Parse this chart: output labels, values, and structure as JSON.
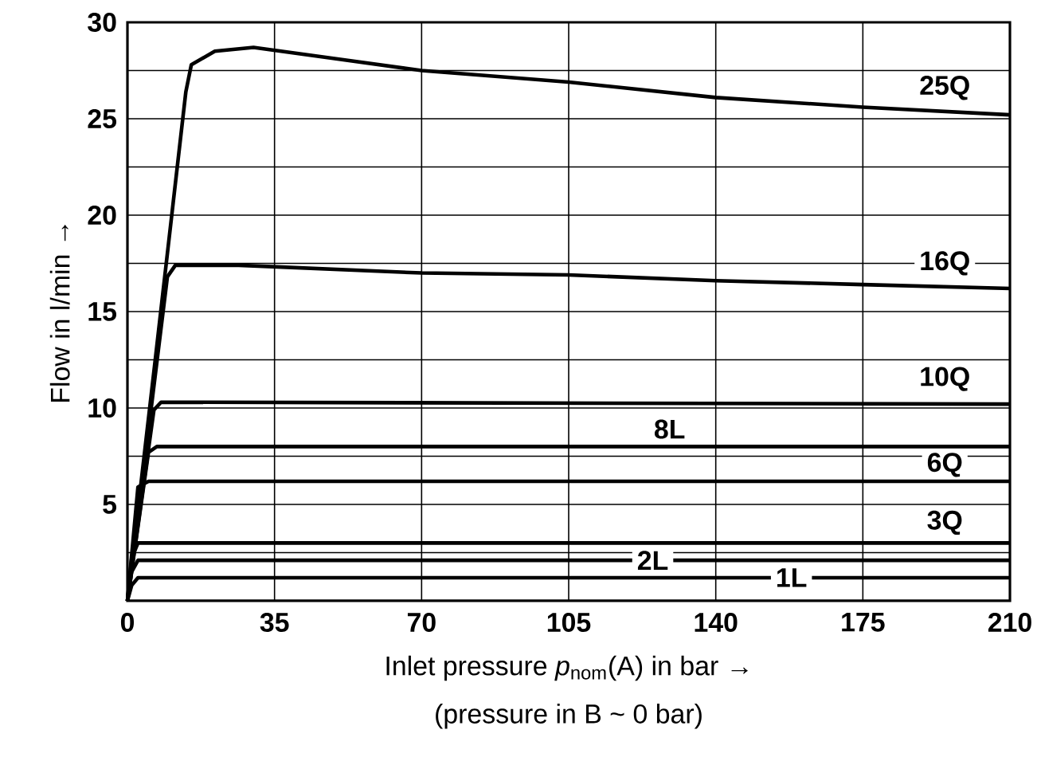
{
  "chart_data": {
    "type": "line",
    "xlabel": "Inlet pressure *p*$_{nom}$(A) in bar →",
    "ylabel": "Flow in l/min →",
    "annotations": [
      "(pressure in B ~ 0 bar)"
    ],
    "xlim": [
      0,
      210
    ],
    "ylim": [
      0,
      30
    ],
    "xticks": [
      0,
      35,
      70,
      105,
      140,
      175,
      210
    ],
    "yticks": [
      {
        "value": 0,
        "label": null
      },
      {
        "value": 2.5,
        "label": null
      },
      5,
      {
        "value": 7.5,
        "label": null
      },
      10,
      {
        "value": 12.5,
        "label": null
      },
      15,
      {
        "value": 17.5,
        "label": null
      },
      20,
      {
        "value": 22.5,
        "label": null
      },
      25,
      {
        "value": 27.5,
        "label": null
      },
      30
    ],
    "grid": true,
    "series": [
      {
        "name": "25Q",
        "color": "#000000",
        "x": [
          0,
          6.4,
          13.9,
          15.2,
          20.8,
          30,
          50,
          70,
          105,
          140,
          175,
          210
        ],
        "values": [
          0,
          12.1,
          26.4,
          27.8,
          28.5,
          28.7,
          28.1,
          27.5,
          26.9,
          26.1,
          25.6,
          25.2
        ]
      },
      {
        "name": "16Q",
        "color": "#000000",
        "x": [
          0,
          9.5,
          11.4,
          26.5,
          70,
          105,
          140,
          175,
          210
        ],
        "values": [
          0,
          16.8,
          17.4,
          17.4,
          17.0,
          16.9,
          16.6,
          16.4,
          16.2
        ]
      },
      {
        "name": "10Q",
        "color": "#000000",
        "x": [
          0,
          6.3,
          8,
          210
        ],
        "values": [
          0,
          9.9,
          10.3,
          10.2
        ]
      },
      {
        "name": "8L",
        "color": "#000000",
        "x": [
          0,
          5,
          7,
          210
        ],
        "values": [
          0,
          7.7,
          8.0,
          8.0
        ]
      },
      {
        "name": "6Q",
        "color": "#000000",
        "x": [
          0,
          2.5,
          5,
          210
        ],
        "values": [
          0,
          5.9,
          6.2,
          6.2
        ]
      },
      {
        "name": "3Q",
        "color": "#000000",
        "x": [
          0,
          1,
          2.5,
          210
        ],
        "values": [
          0,
          2.2,
          3.0,
          3.0
        ]
      },
      {
        "name": "2L",
        "color": "#000000",
        "x": [
          0,
          1,
          2.5,
          210
        ],
        "values": [
          0,
          1.5,
          2.1,
          2.1
        ]
      },
      {
        "name": "1L",
        "color": "#000000",
        "x": [
          0,
          1,
          2.5,
          210
        ],
        "values": [
          0,
          0.8,
          1.2,
          1.2
        ]
      }
    ]
  }
}
